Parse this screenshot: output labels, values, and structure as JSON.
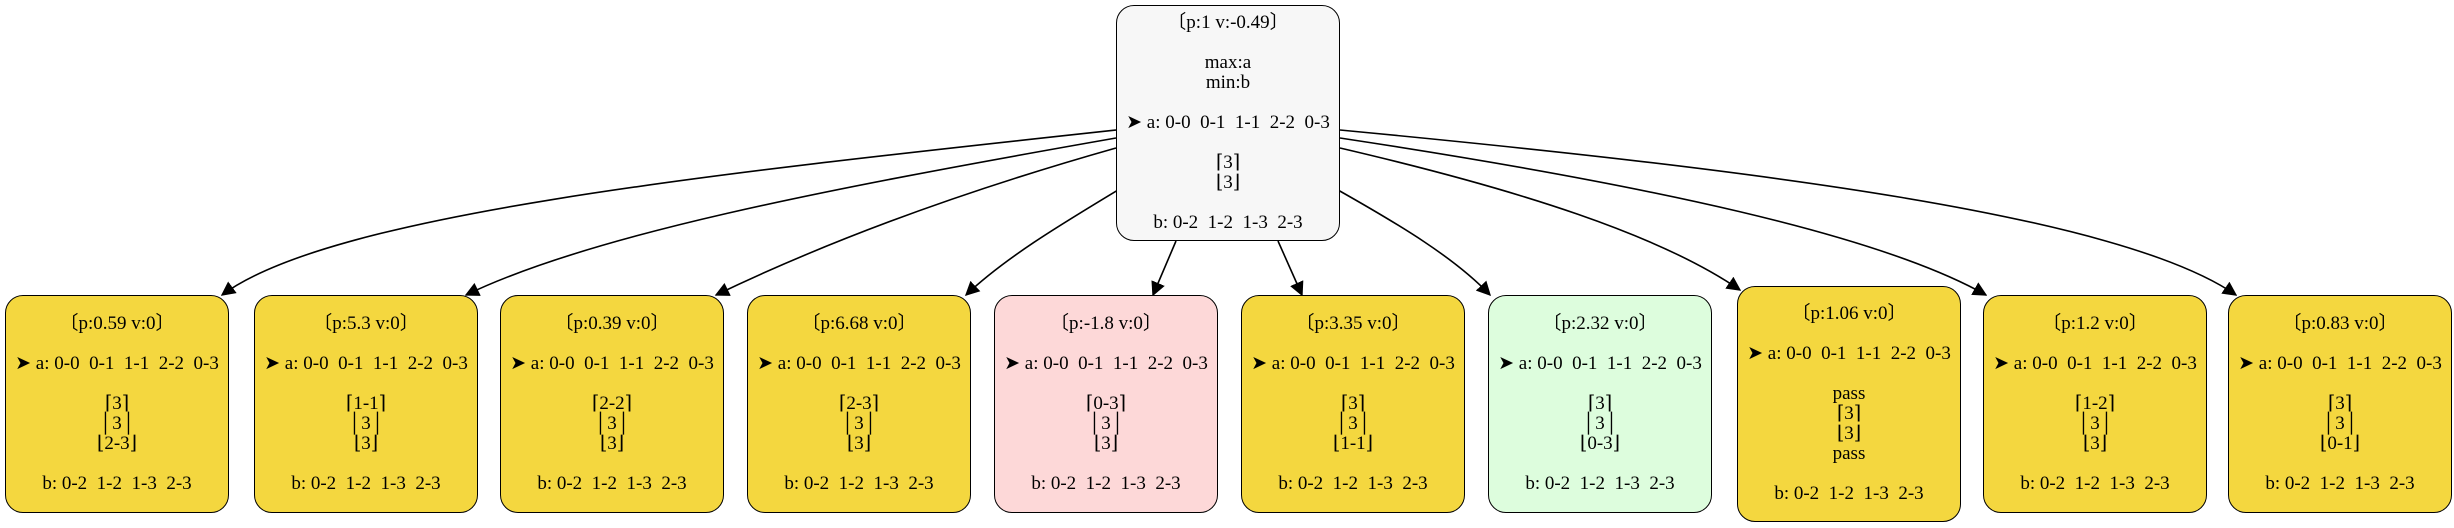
{
  "root": {
    "header": "〔p:1 v:-0.49〕",
    "max": "max:a",
    "min": "min:b",
    "a_line": "➤ a: 0-0  0-1  1-1  2-2  0-3",
    "stack": [
      "⌈3⌉",
      "⌊3⌋"
    ],
    "b_line": "b: 0-2  1-2  1-3  2-3",
    "fill": "#f7f7f7"
  },
  "children": [
    {
      "header": "〔p:0.59 v:0〕",
      "a_line": "➤ a: 0-0  0-1  1-1  2-2  0-3",
      "stack": [
        "⌈3⌉",
        "│3│",
        "⌊2-3⌋"
      ],
      "b_line": "b: 0-2  1-2  1-3  2-3",
      "fill": "#f4d73f"
    },
    {
      "header": "〔p:5.3 v:0〕",
      "a_line": "➤ a: 0-0  0-1  1-1  2-2  0-3",
      "stack": [
        "⌈1-1⌉",
        "│3│",
        "⌊3⌋"
      ],
      "b_line": "b: 0-2  1-2  1-3  2-3",
      "fill": "#f4d73f"
    },
    {
      "header": "〔p:0.39 v:0〕",
      "a_line": "➤ a: 0-0  0-1  1-1  2-2  0-3",
      "stack": [
        "⌈2-2⌉",
        "│3│",
        "⌊3⌋"
      ],
      "b_line": "b: 0-2  1-2  1-3  2-3",
      "fill": "#f4d73f"
    },
    {
      "header": "〔p:6.68 v:0〕",
      "a_line": "➤ a: 0-0  0-1  1-1  2-2  0-3",
      "stack": [
        "⌈2-3⌉",
        "│3│",
        "⌊3⌋"
      ],
      "b_line": "b: 0-2  1-2  1-3  2-3",
      "fill": "#f4d73f"
    },
    {
      "header": "〔p:-1.8 v:0〕",
      "a_line": "➤ a: 0-0  0-1  1-1  2-2  0-3",
      "stack": [
        "⌈0-3⌉",
        "│3│",
        "⌊3⌋"
      ],
      "b_line": "b: 0-2  1-2  1-3  2-3",
      "fill": "#fdd8d8"
    },
    {
      "header": "〔p:3.35 v:0〕",
      "a_line": "➤ a: 0-0  0-1  1-1  2-2  0-3",
      "stack": [
        "⌈3⌉",
        "│3│",
        "⌊1-1⌋"
      ],
      "b_line": "b: 0-2  1-2  1-3  2-3",
      "fill": "#f4d73f"
    },
    {
      "header": "〔p:2.32 v:0〕",
      "a_line": "➤ a: 0-0  0-1  1-1  2-2  0-3",
      "stack": [
        "⌈3⌉",
        "│3│",
        "⌊0-3⌋"
      ],
      "b_line": "b: 0-2  1-2  1-3  2-3",
      "fill": "#ddfddd"
    },
    {
      "header": "〔p:1.06 v:0〕",
      "a_line": "➤ a: 0-0  0-1  1-1  2-2  0-3",
      "stack": [
        "pass",
        "⌈3⌉",
        "⌊3⌋",
        "pass"
      ],
      "b_line": "b: 0-2  1-2  1-3  2-3",
      "fill": "#f4d73f"
    },
    {
      "header": "〔p:1.2 v:0〕",
      "a_line": "➤ a: 0-0  0-1  1-1  2-2  0-3",
      "stack": [
        "⌈1-2⌉",
        "│3│",
        "⌊3⌋"
      ],
      "b_line": "b: 0-2  1-2  1-3  2-3",
      "fill": "#f4d73f"
    },
    {
      "header": "〔p:0.83 v:0〕",
      "a_line": "➤ a: 0-0  0-1  1-1  2-2  0-3",
      "stack": [
        "⌈3⌉",
        "│3│",
        "⌊0-1⌋"
      ],
      "b_line": "b: 0-2  1-2  1-3  2-3",
      "fill": "#f4d73f"
    }
  ]
}
